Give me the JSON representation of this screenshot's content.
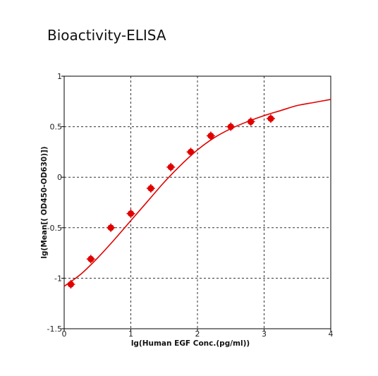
{
  "chart_data": {
    "type": "scatter",
    "title": "Bioactivity-ELISA",
    "xlabel": "lg(Human EGF Conc.(pg/ml))",
    "ylabel": "lg(Mean[( OD450-OD630)])",
    "xlim": [
      0,
      4
    ],
    "ylim": [
      -1.5,
      1
    ],
    "x_ticks": [
      "0",
      "1",
      "2",
      "3",
      "4"
    ],
    "y_ticks": [
      "1",
      "0.5",
      "0",
      "-0.5",
      "-1",
      "-1.5"
    ],
    "grid": true,
    "colors": {
      "series": "#e00000",
      "grid": "#333333",
      "axis": "#000000"
    },
    "series": [
      {
        "kind": "points",
        "x": [
          0.1,
          0.4,
          0.7,
          1.0,
          1.3,
          1.6,
          1.9,
          2.2,
          2.5,
          2.8,
          3.1
        ],
        "y": [
          -1.06,
          -0.81,
          -0.5,
          -0.36,
          -0.11,
          0.1,
          0.25,
          0.41,
          0.5,
          0.55,
          0.58
        ]
      },
      {
        "kind": "fitted-curve",
        "x": [
          0.0,
          0.25,
          0.5,
          0.75,
          1.0,
          1.25,
          1.5,
          1.75,
          2.0,
          2.25,
          2.5,
          2.75,
          3.0,
          3.25,
          3.5,
          3.75,
          4.0
        ],
        "y": [
          -1.08,
          -0.96,
          -0.8,
          -0.62,
          -0.43,
          -0.24,
          -0.05,
          0.12,
          0.27,
          0.39,
          0.48,
          0.55,
          0.61,
          0.66,
          0.71,
          0.74,
          0.77
        ]
      }
    ]
  }
}
